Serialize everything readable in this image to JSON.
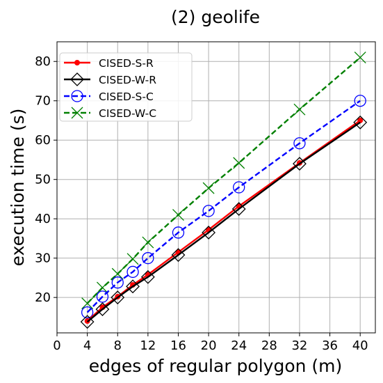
{
  "chart_data": {
    "type": "line",
    "title": "(2) geolife",
    "xlabel": "edges of regular polygon (m)",
    "ylabel": "execution time (s)",
    "xlim": [
      0,
      42
    ],
    "ylim": [
      11,
      85
    ],
    "xticks": [
      0,
      4,
      8,
      12,
      16,
      20,
      24,
      28,
      32,
      36,
      40
    ],
    "yticks": [
      20,
      30,
      40,
      50,
      60,
      70,
      80
    ],
    "x": [
      4,
      6,
      8,
      10,
      12,
      16,
      20,
      24,
      32,
      40
    ],
    "grid": true,
    "legend_position": "upper-left",
    "series": [
      {
        "name": "CISED-S-R",
        "color": "#ff0000",
        "dash": "solid",
        "marker": "dot",
        "values": [
          14,
          17.5,
          20.2,
          23.2,
          25.8,
          31.5,
          37.2,
          43.2,
          54.2,
          65.0
        ]
      },
      {
        "name": "CISED-W-R",
        "color": "#000000",
        "dash": "solid",
        "marker": "diamond",
        "values": [
          13.8,
          17.0,
          20.0,
          22.8,
          25.2,
          30.8,
          36.5,
          42.5,
          54.0,
          64.5
        ]
      },
      {
        "name": "CISED-S-C",
        "color": "#0000ff",
        "dash": "dashed",
        "marker": "circle",
        "values": [
          16.2,
          20.2,
          23.8,
          26.5,
          30.0,
          36.5,
          42.0,
          48.0,
          59.2,
          70.0
        ]
      },
      {
        "name": "CISED-W-C",
        "color": "#008000",
        "dash": "dashed",
        "marker": "x",
        "values": [
          18.5,
          22.5,
          26.0,
          29.8,
          34.0,
          41.0,
          47.8,
          54.2,
          67.8,
          81.0
        ]
      }
    ]
  }
}
